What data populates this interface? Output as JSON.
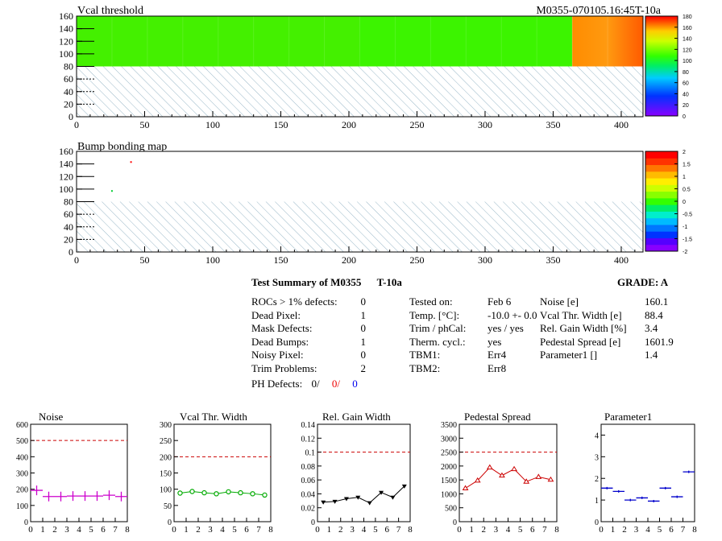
{
  "header": {
    "title": "Vcal threshold",
    "module_tag": "M0355-070105.16:45T-10a"
  },
  "colors": {
    "panel_bg": "#33ff00",
    "hatch": "#9ab8c8",
    "noise_series": "#cc00cc",
    "vcal_series": "#00aa00",
    "gain_series": "#000000",
    "pedestal_series": "#cc0000",
    "param1_series": "#0000cc",
    "reference_line": "#cc0000"
  },
  "chart_data": [
    {
      "type": "heatmap",
      "title": "Vcal threshold",
      "xlim": [
        0,
        416
      ],
      "ylim": [
        0,
        160
      ],
      "xticks": [
        0,
        50,
        100,
        150,
        200,
        250,
        300,
        350,
        400
      ],
      "yticks": [
        0,
        20,
        40,
        60,
        80,
        100,
        120,
        140,
        160
      ],
      "colorbar": {
        "min": 0,
        "max": 180,
        "ticks": [
          0,
          20,
          40,
          60,
          80,
          100,
          120,
          140,
          160,
          180
        ]
      },
      "blocks": [
        {
          "x": [
            0,
            208
          ],
          "y": [
            80,
            160
          ],
          "value": 100
        },
        {
          "x": [
            208,
            364
          ],
          "y": [
            80,
            160
          ],
          "value": 105
        },
        {
          "x": [
            364,
            416
          ],
          "y": [
            80,
            160
          ],
          "value": 150
        }
      ],
      "empty_region": {
        "x": [
          0,
          416
        ],
        "y": [
          0,
          80
        ]
      }
    },
    {
      "type": "heatmap",
      "title": "Bump bonding map",
      "xlim": [
        0,
        416
      ],
      "ylim": [
        0,
        160
      ],
      "xticks": [
        0,
        50,
        100,
        150,
        200,
        250,
        300,
        350,
        400
      ],
      "yticks": [
        0,
        20,
        40,
        60,
        80,
        100,
        120,
        140,
        160
      ],
      "colorbar": {
        "min": -2,
        "max": 2,
        "ticks": [
          -2,
          -1.5,
          -1,
          -0.5,
          0,
          0.5,
          1,
          1.5,
          2
        ]
      },
      "points": [
        {
          "x": 40,
          "y": 143,
          "value": 2
        },
        {
          "x": 26,
          "y": 97,
          "value": 0.2
        }
      ],
      "empty_region": {
        "x": [
          0,
          416
        ],
        "y": [
          0,
          80
        ]
      }
    },
    {
      "type": "line",
      "title": "Noise",
      "xlim": [
        0,
        8
      ],
      "ylim": [
        0,
        600
      ],
      "reference": 500,
      "xticks": [
        0,
        1,
        2,
        3,
        4,
        5,
        6,
        7,
        8
      ],
      "yticks": [
        0,
        100,
        200,
        300,
        400,
        500,
        600
      ],
      "x": [
        0.5,
        1.5,
        2.5,
        3.5,
        4.5,
        5.5,
        6.5,
        7.5
      ],
      "values": [
        193,
        155,
        155,
        158,
        158,
        158,
        163,
        155
      ],
      "marker": "cross",
      "connect": false
    },
    {
      "type": "line",
      "title": "Vcal Thr. Width",
      "xlim": [
        0,
        8
      ],
      "ylim": [
        0,
        300
      ],
      "reference": 200,
      "xticks": [
        0,
        1,
        2,
        3,
        4,
        5,
        6,
        7,
        8
      ],
      "yticks": [
        0,
        50,
        100,
        150,
        200,
        250,
        300
      ],
      "x": [
        0.5,
        1.5,
        2.5,
        3.5,
        4.5,
        5.5,
        6.5,
        7.5
      ],
      "values": [
        88,
        93,
        89,
        86,
        92,
        89,
        86,
        82
      ],
      "marker": "circle",
      "connect": true
    },
    {
      "type": "line",
      "title": "Rel. Gain Width",
      "xlim": [
        0,
        8
      ],
      "ylim": [
        0,
        0.14
      ],
      "reference": 0.1,
      "xticks": [
        0,
        1,
        2,
        3,
        4,
        5,
        6,
        7,
        8
      ],
      "yticks": [
        0,
        0.02,
        0.04,
        0.06,
        0.08,
        0.1,
        0.12,
        0.14
      ],
      "x": [
        0.5,
        1.5,
        2.5,
        3.5,
        4.5,
        5.5,
        6.5,
        7.5
      ],
      "values": [
        0.028,
        0.029,
        0.033,
        0.035,
        0.027,
        0.042,
        0.035,
        0.051
      ],
      "marker": "triangle-down",
      "connect": true
    },
    {
      "type": "line",
      "title": "Pedestal Spread",
      "xlim": [
        0,
        8
      ],
      "ylim": [
        0,
        3500
      ],
      "reference": 2500,
      "xticks": [
        0,
        1,
        2,
        3,
        4,
        5,
        6,
        7,
        8
      ],
      "yticks": [
        0,
        500,
        1000,
        1500,
        2000,
        2500,
        3000,
        3500
      ],
      "x": [
        0.5,
        1.5,
        2.5,
        3.5,
        4.5,
        5.5,
        6.5,
        7.5
      ],
      "values": [
        1200,
        1480,
        1950,
        1660,
        1890,
        1440,
        1610,
        1510
      ],
      "marker": "triangle-up",
      "connect": true
    },
    {
      "type": "line",
      "title": "Parameter1",
      "xlim": [
        0,
        8
      ],
      "ylim": [
        0,
        4.5
      ],
      "xticks": [
        0,
        1,
        2,
        3,
        4,
        5,
        6,
        7,
        8
      ],
      "yticks": [
        0,
        1,
        2,
        3,
        4
      ],
      "x": [
        0.5,
        1.5,
        2.5,
        3.5,
        4.5,
        5.5,
        6.5,
        7.5
      ],
      "values": [
        1.55,
        1.4,
        1.0,
        1.1,
        0.95,
        1.55,
        1.15,
        2.3
      ],
      "marker": "hbar",
      "connect": false
    }
  ],
  "summary": {
    "title": "Test Summary of M0355",
    "temp_tag": "T-10a",
    "grade": "GRADE:  A",
    "left_rows": [
      {
        "label": "ROCs > 1% defects:",
        "value": "0"
      },
      {
        "label": "Dead Pixel:",
        "value": "1"
      },
      {
        "label": "Mask Defects:",
        "value": "0"
      },
      {
        "label": "Dead Bumps:",
        "value": "1"
      },
      {
        "label": "Noisy Pixel:",
        "value": "0"
      },
      {
        "label": "Trim Problems:",
        "value": "2"
      }
    ],
    "ph_defects": {
      "label": "PH Defects:",
      "v1": "0/",
      "v2": "0/",
      "v3": "0"
    },
    "mid_rows": [
      {
        "label": "Tested on:",
        "value": "Feb 6"
      },
      {
        "label": "Temp. [°C]:",
        "value": "-10.0 +- 0.0"
      },
      {
        "label": "Trim / phCal:",
        "value": "yes / yes"
      },
      {
        "label": "Therm. cycl.:",
        "value": "yes"
      },
      {
        "label": "TBM1:",
        "value": "Err4"
      },
      {
        "label": "TBM2:",
        "value": "Err8"
      }
    ],
    "right_rows": [
      {
        "label": "Noise [e]",
        "value": "160.1"
      },
      {
        "label": "Vcal Thr. Width [e]",
        "value": "88.4"
      },
      {
        "label": "Rel. Gain Width [%]",
        "value": "3.4"
      },
      {
        "label": "Pedestal Spread [e]",
        "value": "1601.9"
      },
      {
        "label": "Parameter1 []",
        "value": "1.4"
      }
    ]
  }
}
